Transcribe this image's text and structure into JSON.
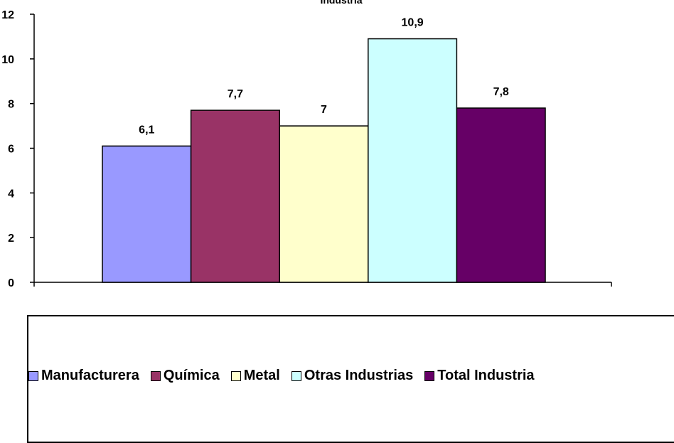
{
  "chart_data": {
    "type": "bar",
    "title": "Industria",
    "categories": [
      "Manufacturera",
      "Química",
      "Metal",
      "Otras Industrias",
      "Total Industria"
    ],
    "values": [
      6.1,
      7.7,
      7.0,
      10.9,
      7.8
    ],
    "value_labels": [
      "6,1",
      "7,7",
      "7",
      "10,9",
      "7,8"
    ],
    "colors": [
      "#9999ff",
      "#993366",
      "#ffffcc",
      "#ccffff",
      "#660066"
    ],
    "ylim": [
      0,
      12
    ],
    "yticks": [
      0,
      2,
      4,
      6,
      8,
      10,
      12
    ],
    "xlabel": "",
    "ylabel": "",
    "grid": false,
    "legend_position": "bottom"
  },
  "legend": {
    "items": [
      {
        "label": "Manufacturera",
        "color": "#9999ff"
      },
      {
        "label": "Química",
        "color": "#993366"
      },
      {
        "label": "Metal",
        "color": "#ffffcc"
      },
      {
        "label": "Otras Industrias",
        "color": "#ccffff"
      },
      {
        "label": "Total Industria",
        "color": "#660066"
      }
    ]
  }
}
